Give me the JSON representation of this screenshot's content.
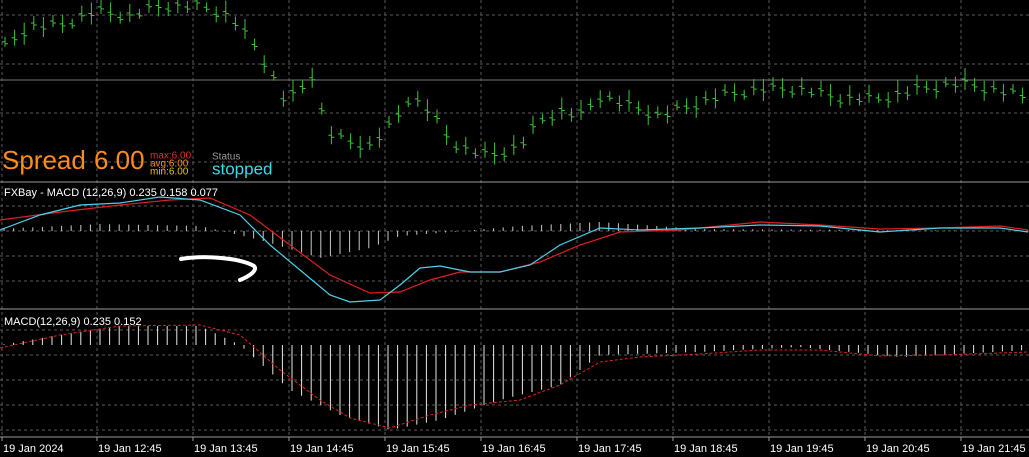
{
  "spread": {
    "label": "Spread",
    "value": "6.00",
    "max": "max:6.00",
    "avg": "avg:6.00",
    "min": "min:6.00"
  },
  "status": {
    "label": "Status",
    "value": "stopped"
  },
  "panels": {
    "macd_custom": "FXBay - MACD (12,26,9) 0.235 0.158 0.077",
    "macd": "MACD(12,26,9) 0.235 0.152"
  },
  "time_axis": [
    "19 Jan 2024",
    "19 Jan 12:45",
    "19 Jan 13:45",
    "19 Jan 14:45",
    "19 Jan 15:45",
    "19 Jan 16:45",
    "19 Jan 17:45",
    "19 Jan 18:45",
    "19 Jan 19:45",
    "19 Jan 20:45",
    "19 Jan 21:45"
  ]
}
